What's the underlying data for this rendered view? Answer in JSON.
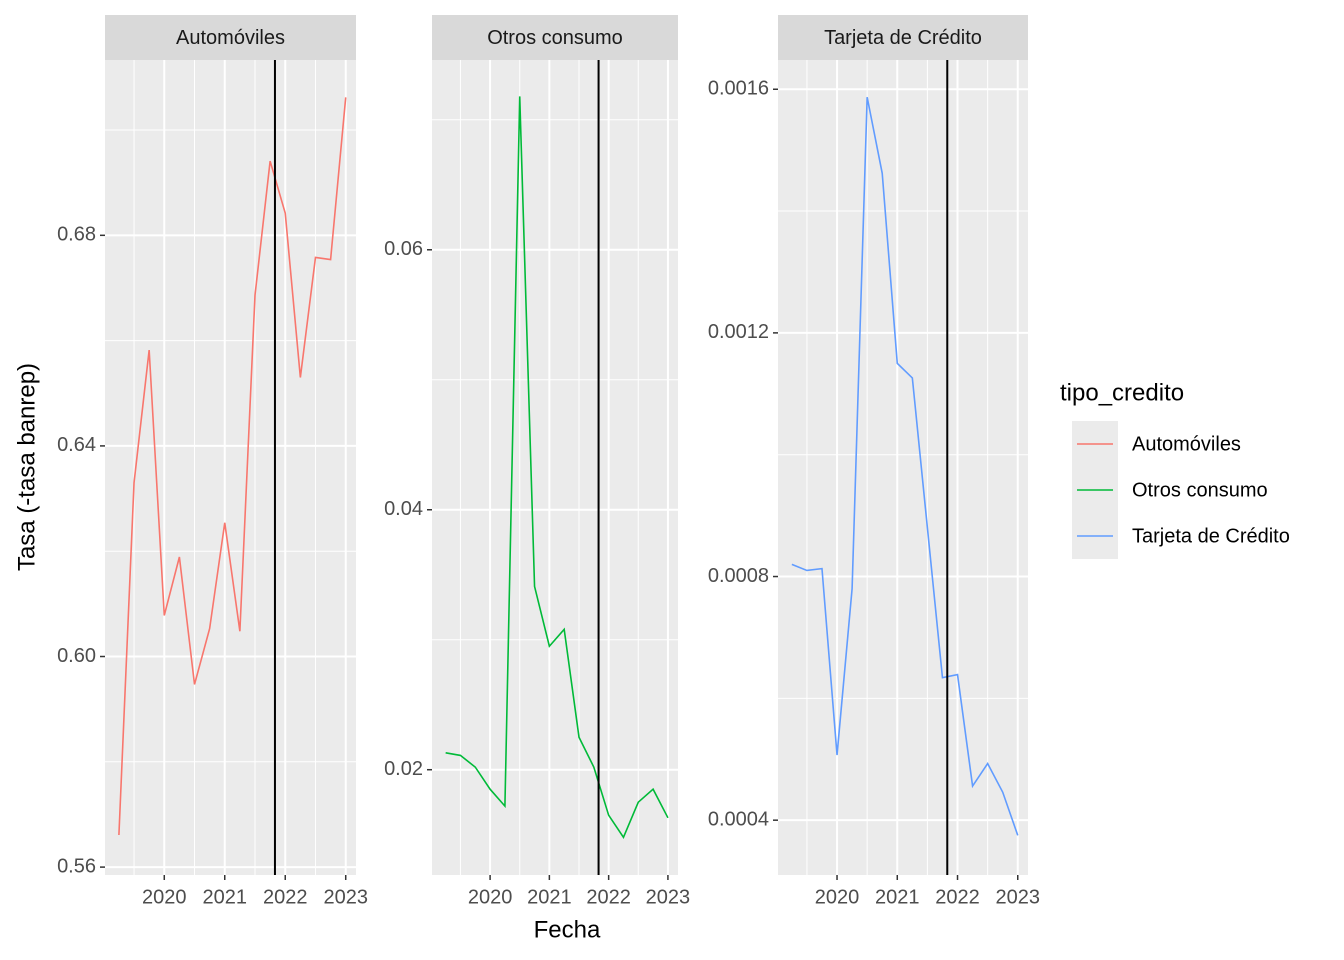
{
  "x_label": "Fecha",
  "y_label": "Tasa (-tasa banrep)",
  "legend_title": "tipo_credito",
  "chart_data": [
    {
      "type": "line",
      "title": "Automóviles",
      "x": [
        2019.25,
        2019.5,
        2019.75,
        2020.0,
        2020.25,
        2020.5,
        2020.75,
        2021.0,
        2021.25,
        2021.5,
        2021.75,
        2022.0,
        2022.25,
        2022.5,
        2022.75,
        2023.0
      ],
      "series": [
        {
          "name": "Automóviles",
          "color": "#F8766D",
          "values": [
            0.5661,
            0.633,
            0.6582,
            0.6078,
            0.6189,
            0.5947,
            0.6053,
            0.6254,
            0.6048,
            0.6686,
            0.6941,
            0.6842,
            0.653,
            0.6758,
            0.6754,
            0.7062
          ]
        }
      ],
      "xlim": [
        2019.02,
        2023.17
      ],
      "ylim": [
        0.5585,
        0.7133
      ],
      "xticks": [
        2020,
        2021,
        2022,
        2023
      ],
      "yticks": [
        0.56,
        {
          "value": 0.6,
          "label": "0.60"
        },
        0.64,
        0.68
      ],
      "vline": 2021.83,
      "grid": true
    },
    {
      "type": "line",
      "title": "Otros consumo",
      "x": [
        2019.25,
        2019.5,
        2019.75,
        2020.0,
        2020.25,
        2020.5,
        2020.75,
        2021.0,
        2021.25,
        2021.5,
        2021.75,
        2022.0,
        2022.25,
        2022.5,
        2022.75,
        2023.0
      ],
      "series": [
        {
          "name": "Otros consumo",
          "color": "#00BA38",
          "values": [
            0.0213,
            0.0211,
            0.0202,
            0.0185,
            0.0172,
            0.0718,
            0.0341,
            0.0295,
            0.0308,
            0.0225,
            0.0202,
            0.0165,
            0.0148,
            0.0175,
            0.0185,
            0.0163
          ]
        }
      ],
      "xlim": [
        2019.02,
        2023.17
      ],
      "ylim": [
        0.0119,
        0.0746
      ],
      "xticks": [
        2020,
        2021,
        2022,
        2023
      ],
      "yticks": [
        0.02,
        0.04,
        0.06
      ],
      "vline": 2021.83,
      "grid": true
    },
    {
      "type": "line",
      "title": "Tarjeta de Crédito",
      "x": [
        2019.25,
        2019.5,
        2019.75,
        2020.0,
        2020.25,
        2020.5,
        2020.75,
        2021.0,
        2021.25,
        2021.5,
        2021.75,
        2022.0,
        2022.25,
        2022.5,
        2022.75,
        2023.0
      ],
      "series": [
        {
          "name": "Tarjeta de Crédito",
          "color": "#619CFF",
          "values": [
            0.00082,
            0.00081,
            0.000813,
            0.000507,
            0.00078,
            0.001587,
            0.001462,
            0.00115,
            0.001126,
            0.00088,
            0.000634,
            0.000639,
            0.000456,
            0.000493,
            0.000446,
            0.000375
          ]
        }
      ],
      "xlim": [
        2019.02,
        2023.17
      ],
      "ylim": [
        0.00031,
        0.001648
      ],
      "xticks": [
        2020,
        2021,
        2022,
        2023
      ],
      "yticks": [
        0.0004,
        0.0008,
        0.0012,
        0.0016
      ],
      "vline": 2021.83,
      "grid": true
    }
  ]
}
